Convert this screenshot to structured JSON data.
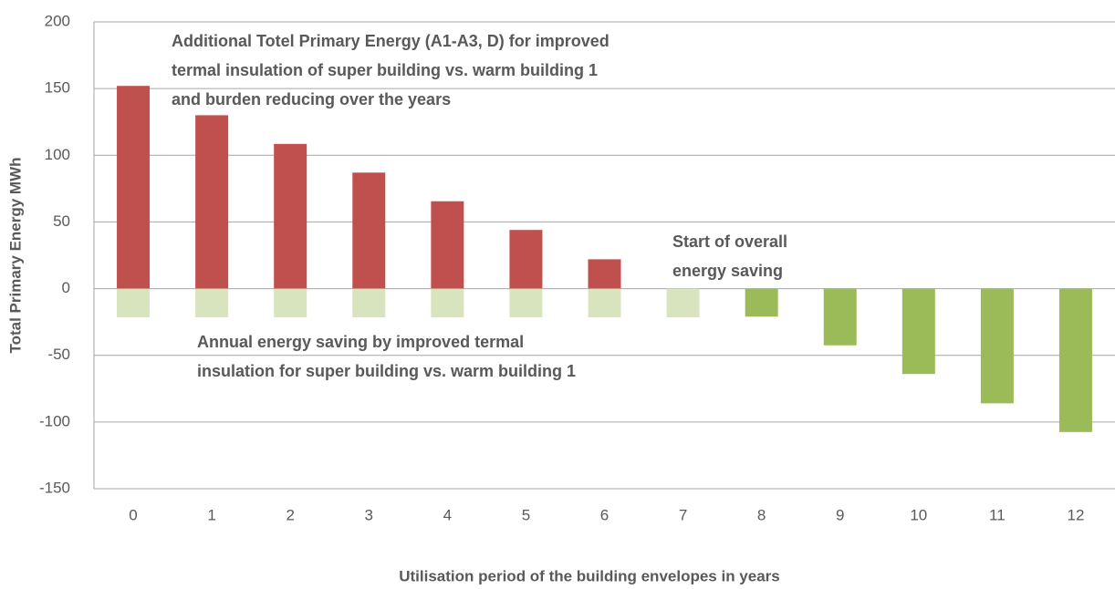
{
  "chart_data": {
    "type": "bar",
    "categories": [
      "0",
      "1",
      "2",
      "3",
      "4",
      "5",
      "6",
      "7",
      "8",
      "9",
      "10",
      "11",
      "12"
    ],
    "series": [
      {
        "color": "#c0504d",
        "values": [
          152,
          130,
          108.5,
          87,
          65.5,
          44,
          22,
          null,
          null,
          null,
          null,
          null,
          null
        ]
      },
      {
        "color": "#d7e4bd",
        "values": [
          -21.5,
          -21.5,
          -21.5,
          -21.5,
          -21.5,
          -21.5,
          -21.5,
          -21.5,
          null,
          null,
          null,
          null,
          null
        ]
      },
      {
        "color": "#9bbb59",
        "values": [
          null,
          null,
          null,
          null,
          null,
          null,
          null,
          null,
          -21,
          -42.5,
          -64,
          -86,
          -107.5
        ]
      }
    ],
    "ylim": [
      -150,
      200
    ],
    "yticks": [
      -150,
      -100,
      -50,
      0,
      50,
      100,
      150,
      200
    ],
    "grid": true,
    "y_label": "Total Primary Energy MWh",
    "x_label": "Utilisation period of the building envelopes in years",
    "annotations": [
      {
        "lines": [
          "Additional Totel Primary Energy (A1-A3, D) for improved",
          "termal insulation of super building vs. warm building 1",
          "and burden reducing over the years"
        ]
      },
      {
        "lines": [
          "Start of overall",
          "energy saving"
        ]
      },
      {
        "lines": [
          "Annual  energy saving by  improved termal",
          "insulation for super building vs. warm building 1"
        ]
      }
    ]
  }
}
